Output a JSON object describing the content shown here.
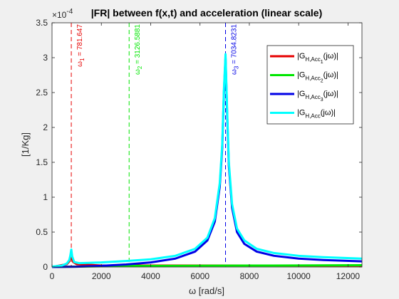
{
  "chart_data": {
    "type": "line",
    "title": "|FR| between f(x,t) and acceleration (linear scale)",
    "xlabel": "ω [rad/s]",
    "ylabel": "[1/Kg]",
    "xlim": [
      0,
      12566
    ],
    "ylim": [
      0,
      0.00035
    ],
    "y_exponent_label": "×10",
    "y_exponent_value": "-4",
    "x_ticks": [
      0,
      2000,
      4000,
      6000,
      8000,
      10000,
      12000
    ],
    "x_tick_labels": [
      "0",
      "2000",
      "4000",
      "6000",
      "8000",
      "10000",
      "12000"
    ],
    "y_ticks": [
      0,
      5e-05,
      0.0001,
      0.00015,
      0.0002,
      0.00025,
      0.0003,
      0.00035
    ],
    "y_tick_labels": [
      "0",
      "0.5",
      "1",
      "1.5",
      "2",
      "2.5",
      "3",
      "3.5"
    ],
    "grid": false,
    "legend_position": "top-right",
    "legend": [
      {
        "color": "#e60000",
        "base": "|G",
        "sub": "H,Acc",
        "subsub": "1",
        "tail": "(jω)|"
      },
      {
        "color": "#00e600",
        "base": "|G",
        "sub": "H,Acc",
        "subsub": "2",
        "tail": "(jω)|"
      },
      {
        "color": "#0000e6",
        "base": "|G",
        "sub": "H,Acc",
        "subsub": "3",
        "tail": "(jω)|"
      },
      {
        "color": "#00ffff",
        "base": "|G",
        "sub": "H,Acc",
        "subsub": "",
        "tail": "(jω)|"
      }
    ],
    "vlines": [
      {
        "x": 781.647,
        "color": "#e60000",
        "sym": "ω",
        "sub": "1",
        "label": " = 781.647"
      },
      {
        "x": 3126.5881,
        "color": "#00e600",
        "sym": "ω",
        "sub": "2",
        "label": " = 3126.5881"
      },
      {
        "x": 7034.8231,
        "color": "#0000e6",
        "sym": "ω",
        "sub": "3",
        "label": " = 7034.8231"
      }
    ],
    "series": [
      {
        "color": "#e60000",
        "x": [
          0,
          600,
          700,
          760,
          781.6,
          800,
          860,
          1000,
          2000,
          4000,
          6000,
          8000,
          10000,
          12566
        ],
        "y": [
          0,
          4e-06,
          8e-06,
          1.6e-05,
          1.9e-05,
          1.5e-05,
          7e-06,
          4e-06,
          2e-06,
          2e-06,
          2e-06,
          2e-06,
          2e-06,
          2e-06
        ]
      },
      {
        "color": "#00e600",
        "x": [
          0,
          1000,
          2000,
          3000,
          3126,
          3300,
          4000,
          6000,
          8000,
          10000,
          12566
        ],
        "y": [
          0,
          5e-07,
          1e-06,
          1.5e-06,
          1.6e-06,
          1.5e-06,
          1.5e-06,
          1.8e-06,
          2e-06,
          2.2e-06,
          2.5e-06
        ]
      },
      {
        "color": "#0000e6",
        "x": [
          0,
          1000,
          2000,
          3000,
          4000,
          5000,
          5800,
          6300,
          6600,
          6800,
          6900,
          6970,
          7034.8,
          7100,
          7170,
          7300,
          7500,
          7800,
          8300,
          9000,
          10000,
          11000,
          12566
        ],
        "y": [
          0,
          4e-07,
          1.6e-06,
          3.6e-06,
          6.5e-06,
          1.2e-05,
          2.2e-05,
          3.8e-05,
          6.5e-05,
          0.000115,
          0.00017,
          0.00025,
          0.0003,
          0.00022,
          0.000145,
          8.5e-05,
          5e-05,
          3.3e-05,
          2.2e-05,
          1.6e-05,
          1.2e-05,
          1e-05,
          8e-06
        ]
      },
      {
        "color": "#00ffff",
        "x": [
          0,
          400,
          600,
          700,
          740,
          781.6,
          820,
          900,
          1100,
          2000,
          3000,
          4000,
          5000,
          5800,
          6300,
          6600,
          6800,
          6900,
          6970,
          7034.8,
          7100,
          7170,
          7300,
          7500,
          7800,
          8300,
          9000,
          10000,
          11000,
          12566
        ],
        "y": [
          5e-07,
          2e-06,
          5e-06,
          1e-05,
          1.6e-05,
          2.5e-05,
          1.5e-05,
          7e-06,
          5.5e-06,
          6.5e-06,
          8.5e-06,
          1.1e-05,
          1.6e-05,
          2.6e-05,
          4.2e-05,
          7e-05,
          0.00012,
          0.000175,
          0.000255,
          0.000305,
          0.000225,
          0.00015,
          9e-05,
          5.5e-05,
          3.8e-05,
          2.6e-05,
          2e-05,
          1.6e-05,
          1.4e-05,
          1.2e-05
        ]
      }
    ]
  }
}
